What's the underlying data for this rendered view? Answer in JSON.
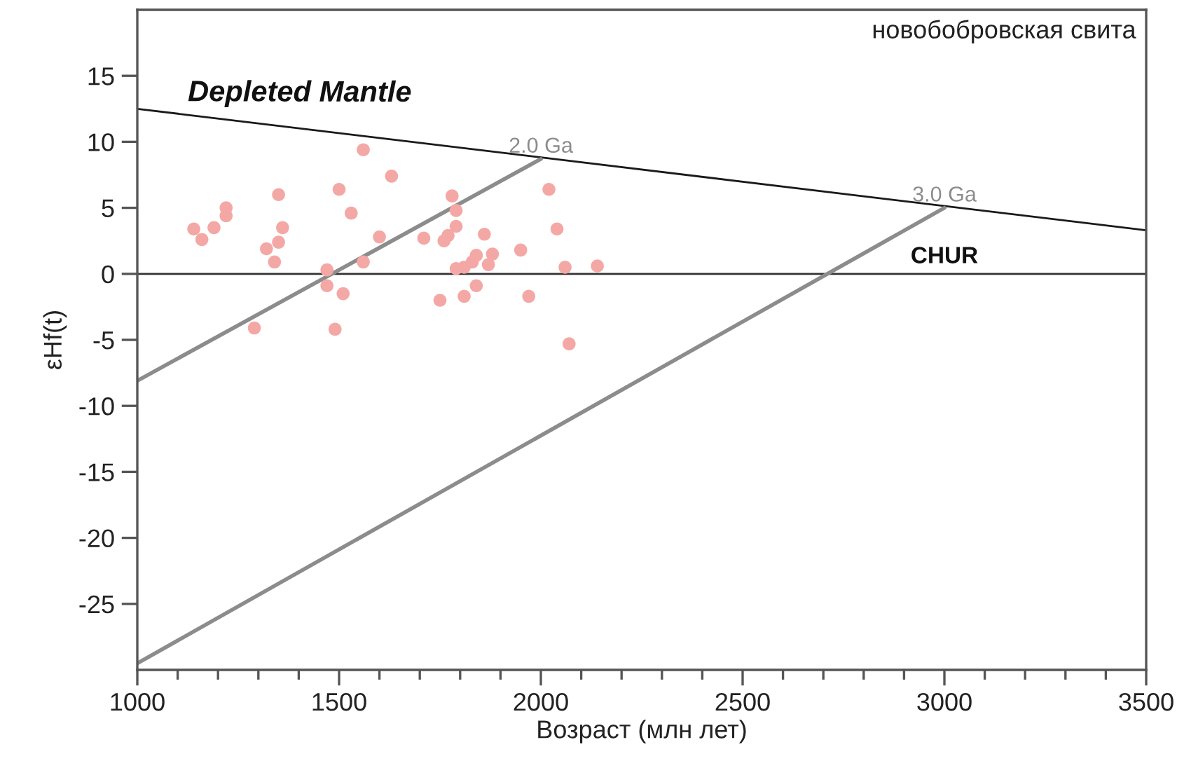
{
  "chart_data": {
    "type": "scatter",
    "xlabel": "Возраст (млн лет)",
    "ylabel": "εHf(t)",
    "annotations": [
      "новобобровская свита"
    ],
    "xlim": [
      1000,
      3500
    ],
    "xticks": [
      1000,
      {
        "value": 1100,
        "label": null
      },
      {
        "value": 1200,
        "label": null
      },
      {
        "value": 1300,
        "label": null
      },
      {
        "value": 1400,
        "label": null
      },
      1500,
      {
        "value": 1600,
        "label": null
      },
      {
        "value": 1700,
        "label": null
      },
      {
        "value": 1800,
        "label": null
      },
      {
        "value": 1900,
        "label": null
      },
      2000,
      {
        "value": 2100,
        "label": null
      },
      {
        "value": 2200,
        "label": null
      },
      {
        "value": 2300,
        "label": null
      },
      {
        "value": 2400,
        "label": null
      },
      2500,
      {
        "value": 2600,
        "label": null
      },
      {
        "value": 2700,
        "label": null
      },
      {
        "value": 2800,
        "label": null
      },
      {
        "value": 2900,
        "label": null
      },
      3000,
      {
        "value": 3100,
        "label": null
      },
      {
        "value": 3200,
        "label": null
      },
      {
        "value": 3300,
        "label": null
      },
      {
        "value": 3400,
        "label": null
      },
      3500
    ],
    "ylim": [
      -30,
      20
    ],
    "yticks": [
      -25,
      -20,
      -15,
      -10,
      -5,
      0,
      5,
      10,
      15
    ],
    "grid": false,
    "legend": false,
    "ref_lines": [
      {
        "axis": "y",
        "value": 0,
        "label": "CHUR",
        "color": "#333333"
      }
    ],
    "series": [
      {
        "marker": "circle",
        "color": "#f4a8a6",
        "x": [
          1140,
          1160,
          1190,
          1220,
          1220,
          1350,
          1360,
          1350,
          1320,
          1340,
          1290,
          1470,
          1470,
          1510,
          1490,
          1500,
          1530,
          1560,
          1630,
          1600,
          1560,
          1710,
          1760,
          1770,
          1780,
          1790,
          1790,
          1860,
          1790,
          1810,
          1830,
          1840,
          1880,
          1870,
          1840,
          1810,
          1750,
          1950,
          1970,
          2020,
          2040,
          2060,
          2140,
          2070
        ],
        "values": [
          3.4,
          2.6,
          3.5,
          5.0,
          4.4,
          6.0,
          3.5,
          2.4,
          1.9,
          0.9,
          -4.1,
          0.3,
          -0.9,
          -1.5,
          -4.2,
          6.4,
          4.6,
          9.4,
          7.4,
          2.8,
          0.9,
          2.7,
          2.5,
          2.9,
          5.9,
          4.8,
          3.6,
          3.0,
          0.4,
          0.5,
          0.9,
          1.4,
          1.5,
          0.7,
          -0.9,
          -1.7,
          -2.0,
          1.8,
          -1.7,
          6.4,
          3.4,
          0.5,
          0.6,
          -5.3
        ]
      },
      {
        "type": "line",
        "name": "Depleted Mantle",
        "color": "#1a1a1a",
        "x": [
          1000,
          3500
        ],
        "values": [
          12.5,
          3.3
        ]
      },
      {
        "type": "line",
        "name": "2.0 Ga",
        "color": "#8c8c8c",
        "x": [
          1000,
          2000
        ],
        "values": [
          -8.1,
          8.7
        ]
      },
      {
        "type": "line",
        "name": "3.0 Ga",
        "color": "#8c8c8c",
        "x": [
          1000,
          3000
        ],
        "values": [
          -29.5,
          5.0
        ]
      }
    ]
  }
}
